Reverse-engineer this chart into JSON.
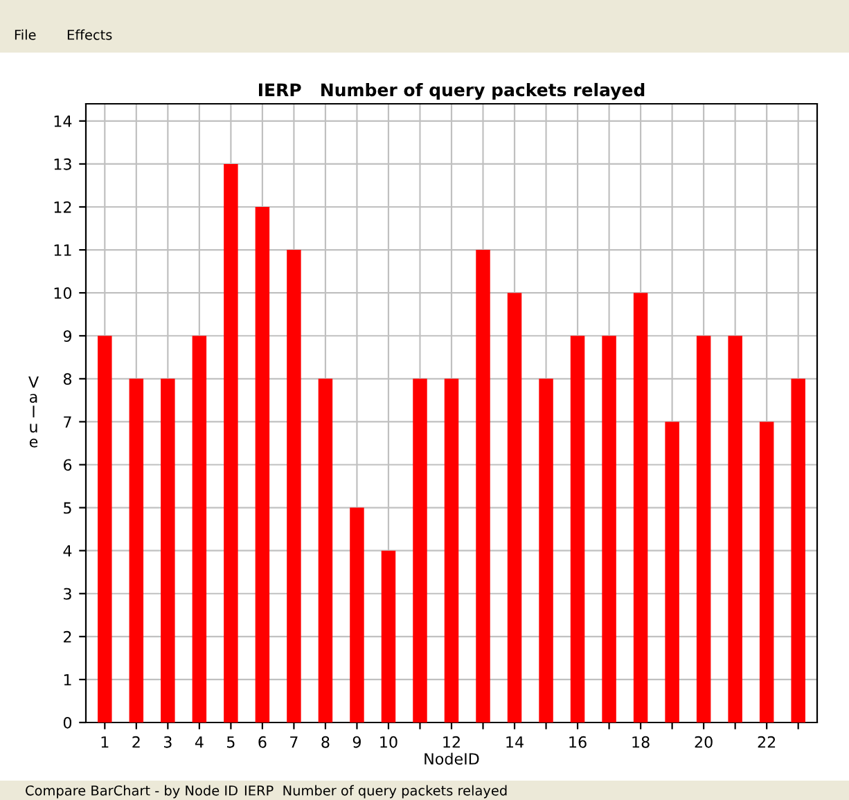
{
  "chart_data": {
    "type": "bar",
    "title": "IERP   Number of query packets relayed",
    "xlabel": "NodeID",
    "ylabel": "Value",
    "categories": [
      "1",
      "2",
      "3",
      "4",
      "5",
      "6",
      "7",
      "8",
      "9",
      "10",
      null,
      "12",
      null,
      "14",
      null,
      "16",
      null,
      "18",
      null,
      "20",
      null,
      "22",
      null
    ],
    "values": [
      9,
      8,
      8,
      9,
      13,
      12,
      11,
      8,
      5,
      4,
      8,
      8,
      11,
      10,
      8,
      9,
      9,
      10,
      7,
      9,
      9,
      7,
      8
    ],
    "color": "#ff0000",
    "ylim": [
      0,
      14.4
    ],
    "yticks": [
      0,
      1,
      2,
      3,
      4,
      5,
      6,
      7,
      8,
      9,
      10,
      11,
      12,
      13,
      14
    ],
    "grid": true,
    "legend": false,
    "annotations": [
      "File",
      "Effects",
      "Compare BarChart - by Node ID",
      "IERP  Number of query packets relayed"
    ]
  }
}
